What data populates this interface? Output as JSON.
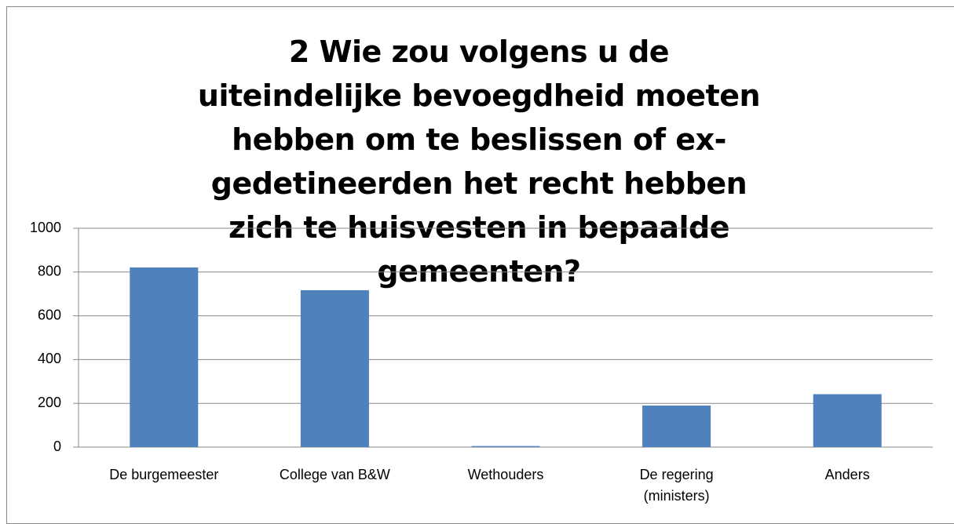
{
  "chart_data": {
    "type": "bar",
    "title": "2 Wie zou volgens u de uiteindelijke bevoegdheid moeten hebben om te beslissen of ex-gedetineerden het recht hebben zich te huisvesten in bepaalde gemeenten?",
    "categories": [
      "De burgemeester",
      "College van B&W",
      "Wethouders",
      "De regering (ministers)",
      "Anders"
    ],
    "values": [
      821,
      717,
      5,
      190,
      242
    ],
    "color": "#4f81bd",
    "ylim": [
      0,
      1000
    ],
    "yticks": [
      0,
      200,
      400,
      600,
      800,
      1000
    ],
    "grid": true
  }
}
